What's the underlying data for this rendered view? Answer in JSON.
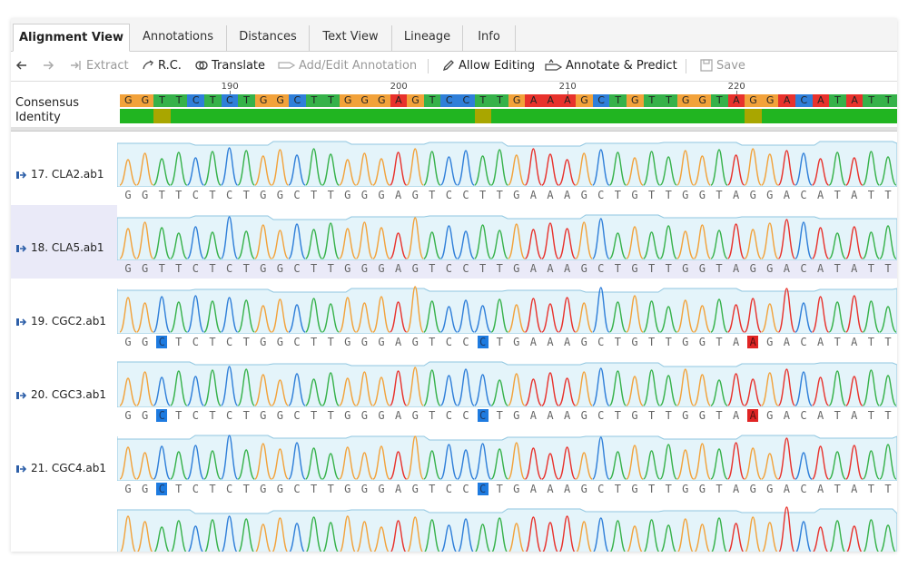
{
  "tabs": [
    {
      "label": "Alignment View",
      "active": true
    },
    {
      "label": "Annotations"
    },
    {
      "label": "Distances"
    },
    {
      "label": "Text View"
    },
    {
      "label": "Lineage"
    },
    {
      "label": "Info"
    }
  ],
  "toolbar": {
    "extract": "Extract",
    "rc": "R.C.",
    "translate": "Translate",
    "add_edit": "Add/Edit Annotation",
    "allow_editing": "Allow Editing",
    "annotate_predict": "Annotate & Predict",
    "save": "Save"
  },
  "header": {
    "consensus_label": "Consensus",
    "identity_label": "Identity",
    "ruler_labels": [
      "190",
      "200",
      "210",
      "220"
    ],
    "consensus_seq": "GGTTCTCTGGCTTGGGAGTCCTTGAAAGCTGTTGGTAGGACATATT"
  },
  "colors": {
    "A": "#e8322c",
    "C": "#2f7fd9",
    "G": "#f2a23a",
    "T": "#36b24a",
    "identity_full": "#21b521",
    "identity_partial": "#a9a600"
  },
  "tracks": [
    {
      "label": "17. CLA2.ab1",
      "seq": "GGTTCTCTGGCTTGGGAGTCCTTGAAAGCTGTTGGTAGGACATATT",
      "highlights": []
    },
    {
      "label": "18. CLA5.ab1",
      "seq": "GGTTCTCTGGCTTGGGAGTCCTTGAAAGCTGTTGGTAGGACATATT",
      "highlights": []
    },
    {
      "label": "19. CGC2.ab1",
      "seq": "GGCTCTCTGGCTTGGGAGTCCCTGAAAGCTGTTGGTAAGACATATT",
      "highlights": [
        2,
        21,
        37
      ]
    },
    {
      "label": "20. CGC3.ab1",
      "seq": "GGCTCTCTGGCTTGGGAGTCCCTGAAAGCTGTTGGTAAGACATATT",
      "highlights": [
        2,
        21,
        37
      ]
    },
    {
      "label": "21. CGC4.ab1",
      "seq": "GGCTCTCTGGCTTGGGAGTCCCTGAAAGCTGTTGGTAGGACATATT",
      "highlights": [
        2,
        21
      ]
    },
    {
      "label": "",
      "seq": "",
      "highlights": []
    }
  ]
}
